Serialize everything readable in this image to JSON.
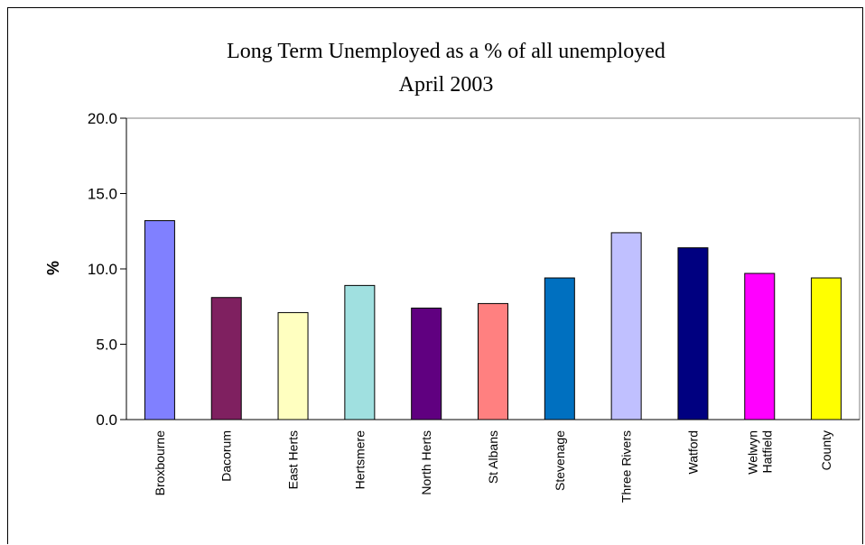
{
  "chart_data": {
    "type": "bar",
    "title": "Long Term Unemployed as a % of all unemployed",
    "subtitle": "April 2003",
    "xlabel": "",
    "ylabel": "%",
    "ylim": [
      0,
      20
    ],
    "yticks": [
      "0.0",
      "5.0",
      "10.0",
      "15.0",
      "20.0"
    ],
    "grid": false,
    "legend": "none",
    "categories": [
      [
        "Broxbourne"
      ],
      [
        "Dacorum"
      ],
      [
        "East Herts"
      ],
      [
        "Hertsmere"
      ],
      [
        "North Herts"
      ],
      [
        "St Albans"
      ],
      [
        "Stevenage"
      ],
      [
        "Three Rivers"
      ],
      [
        "Watford"
      ],
      [
        "Welwyn",
        "Hatfield"
      ],
      [
        "County"
      ]
    ],
    "values": [
      13.2,
      8.1,
      7.1,
      8.9,
      7.4,
      7.7,
      9.4,
      12.4,
      11.4,
      9.7,
      9.4
    ],
    "colors": [
      "#8080ff",
      "#7f2060",
      "#ffffc0",
      "#a0e0e0",
      "#600080",
      "#ff8080",
      "#0070c0",
      "#c0c0ff",
      "#000080",
      "#ff00ff",
      "#ffff00"
    ]
  }
}
